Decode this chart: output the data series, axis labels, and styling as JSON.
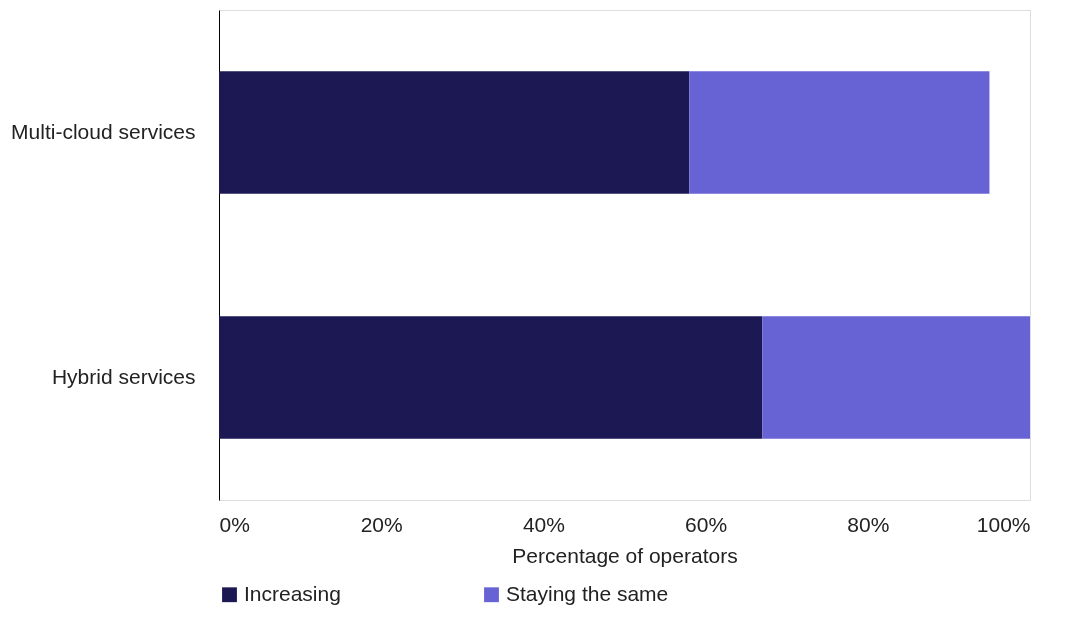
{
  "chart_data": {
    "type": "bar",
    "orientation": "horizontal",
    "stacked": true,
    "xlabel": "Percentage of operators",
    "categories": [
      "Multi-cloud services",
      "Hybrid services"
    ],
    "series": [
      {
        "name": "Increasing",
        "color": "#1b1854",
        "values": [
          58,
          67
        ]
      },
      {
        "name": "Staying the same",
        "color": "#6763d4",
        "values": [
          37,
          33
        ]
      }
    ],
    "xlim": [
      0,
      100
    ],
    "xticks": [
      {
        "value": 0,
        "label": "0%"
      },
      {
        "value": 20,
        "label": "20%"
      },
      {
        "value": 40,
        "label": "40%"
      },
      {
        "value": 60,
        "label": "60%"
      },
      {
        "value": 80,
        "label": "80%"
      },
      {
        "value": 100,
        "label": "100%"
      }
    ],
    "grid": false,
    "legend": "bottom"
  }
}
